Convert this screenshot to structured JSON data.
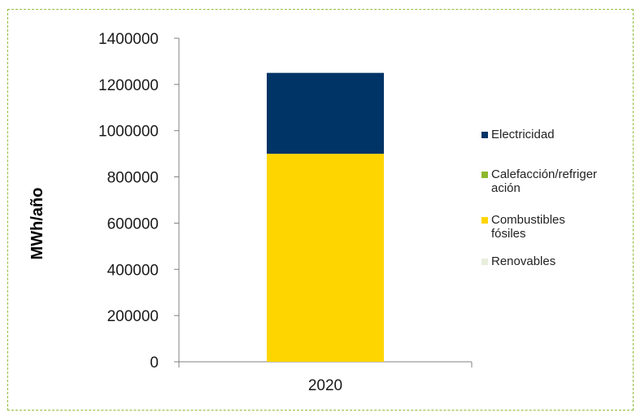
{
  "chart_data": {
    "type": "bar",
    "stacked": true,
    "categories": [
      "2020"
    ],
    "series": [
      {
        "name": "Electricidad",
        "color": "#003366",
        "values": [
          350000
        ]
      },
      {
        "name": "Calefacción/refrigeración",
        "legend_lines": [
          "Calefacción/refriger",
          "ación"
        ],
        "color": "#8db82c",
        "values": [
          0
        ]
      },
      {
        "name": "Combustibles fósiles",
        "legend_lines": [
          "Combustibles",
          "fósiles"
        ],
        "color": "#ffd500",
        "values": [
          900000
        ]
      },
      {
        "name": "Renovables",
        "legend_lines": [
          "Renovables"
        ],
        "color": "#e8eedc",
        "values": [
          0
        ]
      }
    ],
    "ylabel": "MWh/año",
    "ylim": [
      0,
      1400000
    ],
    "yticks": [
      0,
      200000,
      400000,
      600000,
      800000,
      1000000,
      1200000,
      1400000
    ],
    "grid": false,
    "legend_position": "right"
  }
}
